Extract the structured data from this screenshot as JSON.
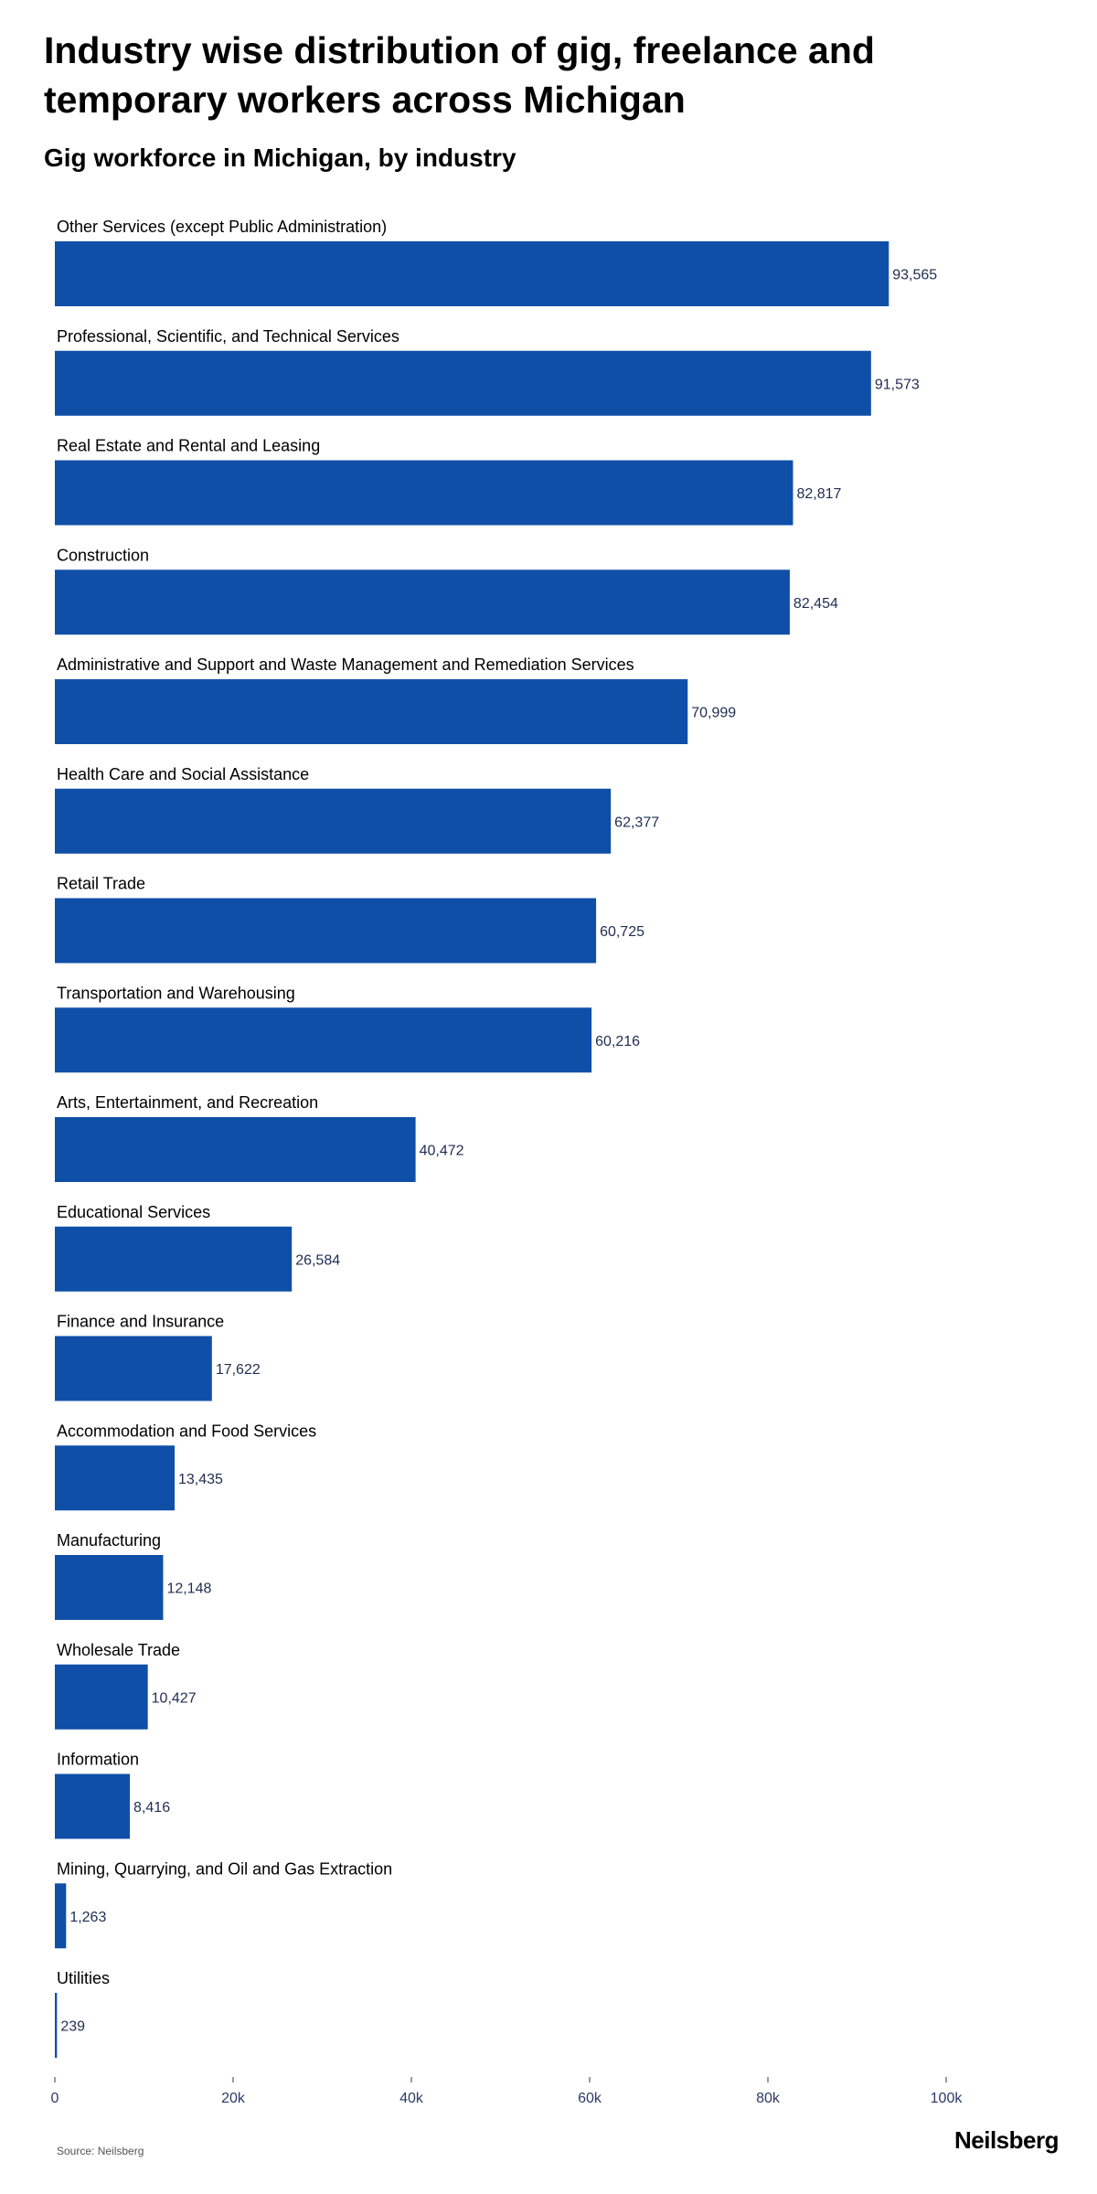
{
  "title": "Industry wise distribution of gig, freelance and temporary workers across Michigan",
  "subtitle": "Gig workforce in Michigan, by industry",
  "source": "Source: Neilsberg",
  "brand": "Neilsberg",
  "colors": {
    "bar": "#0f4fa8",
    "value_text": "#1f2d52",
    "axis_text": "#2b3a67"
  },
  "chart_data": {
    "type": "bar",
    "orientation": "horizontal",
    "title": "Gig workforce in Michigan, by industry",
    "xlabel": "",
    "ylabel": "",
    "xlim": [
      0,
      100000
    ],
    "ticks": [
      0,
      20000,
      40000,
      60000,
      80000,
      100000
    ],
    "tick_labels": [
      "0",
      "20k",
      "40k",
      "60k",
      "80k",
      "100k"
    ],
    "grid": false,
    "categories": [
      "Other Services (except Public Administration)",
      "Professional, Scientific, and Technical Services",
      "Real Estate and Rental and Leasing",
      "Construction",
      "Administrative and Support and Waste Management and Remediation Services",
      "Health Care and Social Assistance",
      "Retail Trade",
      "Transportation and Warehousing",
      "Arts, Entertainment, and Recreation",
      "Educational Services",
      "Finance and Insurance",
      "Accommodation and Food Services",
      "Manufacturing",
      "Wholesale Trade",
      "Information",
      "Mining, Quarrying, and Oil and Gas Extraction",
      "Utilities"
    ],
    "values": [
      93565,
      91573,
      82817,
      82454,
      70999,
      62377,
      60725,
      60216,
      40472,
      26584,
      17622,
      13435,
      12148,
      10427,
      8416,
      1263,
      239
    ],
    "value_labels": [
      "93,565",
      "91,573",
      "82,817",
      "82,454",
      "70,999",
      "62,377",
      "60,725",
      "60,216",
      "40,472",
      "26,584",
      "17,622",
      "13,435",
      "12,148",
      "10,427",
      "8,416",
      "1,263",
      "239"
    ]
  }
}
